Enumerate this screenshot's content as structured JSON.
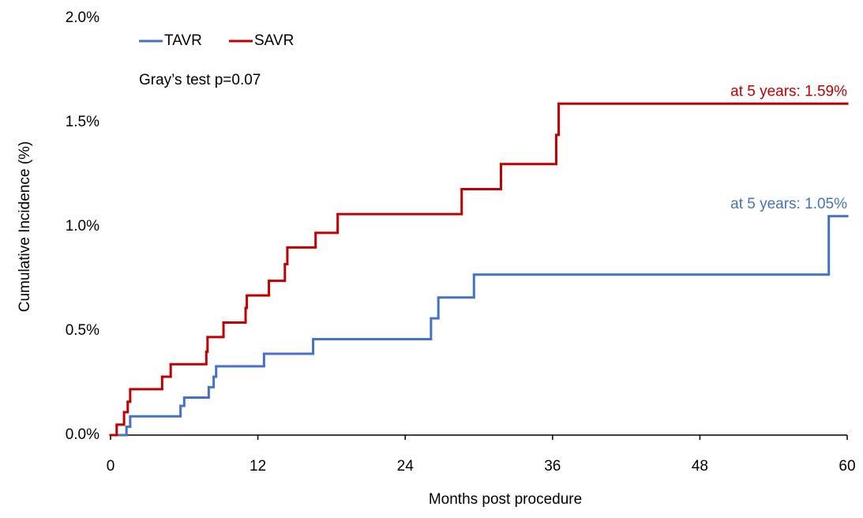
{
  "chart_data": {
    "type": "step",
    "xlabel": "Months post procedure",
    "ylabel": "Cumulative Incidence (%)",
    "annotation": "Gray’s test p=0.07",
    "xlim": [
      0,
      60
    ],
    "xticks": [
      0,
      12,
      24,
      36,
      48,
      60
    ],
    "ylim": [
      0,
      2
    ],
    "yticks": [
      {
        "value": 0,
        "label": "0.0%"
      },
      {
        "value": 0.5,
        "label": "0.5%"
      },
      {
        "value": 1,
        "label": "1.0%"
      },
      {
        "value": 1.5,
        "label": "1.5%"
      },
      {
        "value": 2,
        "label": "2.0%"
      }
    ],
    "legend": "top-left",
    "series": [
      {
        "name": "TAVR",
        "color": "#4472c4",
        "end_label": "at 5 years: 1.05%",
        "x": [
          0,
          1.3,
          1.6,
          5.7,
          6.0,
          8.0,
          8.4,
          8.6,
          12.5,
          16.5,
          26.1,
          26.7,
          29.6,
          58.5,
          60
        ],
        "values": [
          0,
          0.04,
          0.09,
          0.14,
          0.18,
          0.23,
          0.28,
          0.33,
          0.39,
          0.46,
          0.56,
          0.66,
          0.77,
          1.05,
          1.05
        ]
      },
      {
        "name": "SAVR",
        "color": "#c00000",
        "end_label": "at 5 years: 1.59%",
        "x": [
          0,
          0.5,
          1.1,
          1.4,
          1.6,
          4.2,
          4.9,
          7.8,
          7.9,
          9.2,
          11.0,
          11.1,
          12.9,
          14.2,
          14.4,
          16.7,
          18.5,
          28.6,
          31.8,
          36.3,
          36.5,
          60
        ],
        "values": [
          0,
          0.05,
          0.11,
          0.16,
          0.22,
          0.28,
          0.34,
          0.4,
          0.47,
          0.54,
          0.61,
          0.67,
          0.74,
          0.82,
          0.9,
          0.97,
          1.06,
          1.18,
          1.3,
          1.44,
          1.59,
          1.59
        ]
      }
    ]
  }
}
